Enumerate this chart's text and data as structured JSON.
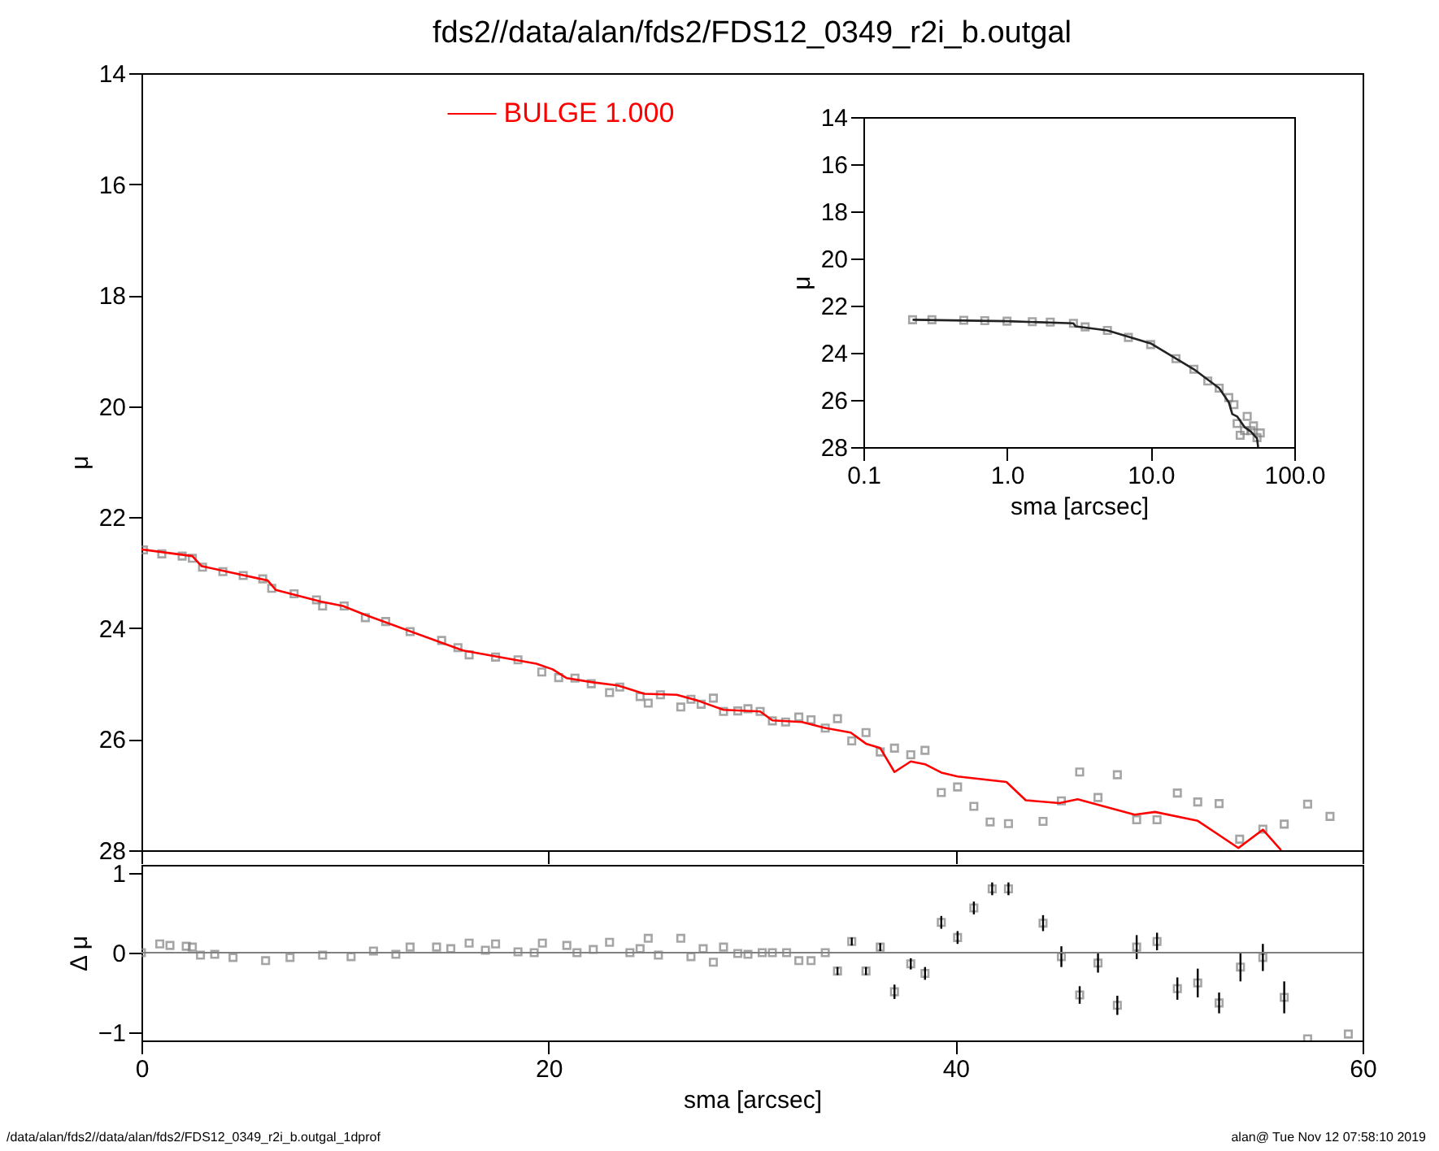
{
  "chart_data": [
    {
      "type": "scatter",
      "title": "fds2//data/alan/fds2/FDS12_0349_r2i_b.outgal",
      "ylabel": "μ",
      "xlim": [
        0,
        60
      ],
      "xticks": [
        0,
        20,
        40,
        60
      ],
      "ylim": [
        28,
        14
      ],
      "yticks": [
        14,
        16,
        18,
        20,
        22,
        24,
        26,
        28
      ],
      "tick_labels": "y",
      "legend": "top",
      "annotations": [
        "/data/alan/fds2//data/alan/fds2/FDS12_0349_r2i_b.outgal_1dprof",
        "alan@  Tue Nov 12 07:58:10 2019"
      ],
      "series": [
        {
          "marker": "square",
          "color": "#808080",
          "x": [
            0.1,
            1.0,
            2.0,
            2.5,
            3.0,
            4.0,
            5.0,
            5.96,
            6.4,
            7.5,
            8.6,
            8.9,
            9.96,
            11.0,
            12.0,
            13.2,
            14.75,
            15.55,
            16.1,
            17.4,
            18.5,
            19.67,
            20.5,
            21.3,
            22.1,
            23.0,
            23.5,
            24.5,
            24.9,
            25.5,
            26.5,
            27.0,
            27.5,
            28.1,
            28.6,
            29.3,
            29.8,
            30.4,
            31.0,
            31.65,
            32.3,
            32.9,
            33.6,
            34.2,
            34.9,
            35.6,
            36.3,
            37.0,
            37.8,
            38.5,
            39.3,
            40.1,
            40.9,
            41.7,
            42.6,
            44.3,
            45.2,
            46.1,
            47.0,
            47.95,
            48.9,
            49.9,
            50.9,
            51.9,
            52.95,
            53.96,
            55.1,
            56.15,
            57.3,
            58.4
          ],
          "values": [
            22.59,
            22.66,
            22.7,
            22.74,
            22.9,
            22.98,
            23.05,
            23.11,
            23.28,
            23.38,
            23.49,
            23.6,
            23.6,
            23.81,
            23.88,
            24.06,
            24.22,
            24.35,
            24.48,
            24.52,
            24.57,
            24.79,
            24.89,
            24.9,
            25.0,
            25.16,
            25.06,
            25.23,
            25.35,
            25.2,
            25.42,
            25.28,
            25.37,
            25.26,
            25.5,
            25.49,
            25.45,
            25.5,
            25.67,
            25.69,
            25.6,
            25.65,
            25.8,
            25.63,
            26.03,
            25.88,
            26.23,
            26.16,
            26.28,
            26.2,
            26.96,
            26.86,
            27.21,
            27.49,
            27.52,
            27.48,
            27.11,
            26.59,
            27.05,
            26.64,
            27.45,
            27.45,
            26.97,
            27.13,
            27.16,
            27.8,
            27.62,
            27.53,
            27.17,
            27.39
          ]
        },
        {
          "type": "line",
          "name": "BULGE  1.000",
          "color": "#ff0000",
          "x": [
            0,
            2.5,
            2.95,
            6.2,
            6.6,
            8.8,
            9.9,
            11,
            15.8,
            19.4,
            20.2,
            20.9,
            22.1,
            23.4,
            24.7,
            26.3,
            27.3,
            28.6,
            30.4,
            31.0,
            32.45,
            33.5,
            34.85,
            35.6,
            36.3,
            37.0,
            37.8,
            38.5,
            39.3,
            40.1,
            42.5,
            43.45,
            45.1,
            46.0,
            48.8,
            49.8,
            51.9,
            53.9,
            55.1,
            56.0
          ],
          "values": [
            22.58,
            22.7,
            22.88,
            23.14,
            23.31,
            23.52,
            23.6,
            23.76,
            24.4,
            24.64,
            24.74,
            24.9,
            24.97,
            25.03,
            25.18,
            25.2,
            25.3,
            25.47,
            25.5,
            25.66,
            25.69,
            25.79,
            25.88,
            26.08,
            26.16,
            26.59,
            26.4,
            26.45,
            26.6,
            26.67,
            26.77,
            27.1,
            27.15,
            27.08,
            27.36,
            27.31,
            27.47,
            27.96,
            27.63,
            28.0
          ]
        }
      ]
    },
    {
      "type": "scatter",
      "xlabel": "sma [arcsec]",
      "ylabel": "μ",
      "log": "x",
      "xlim": [
        0.1,
        100
      ],
      "xticks": [
        {
          "value": 0.1,
          "label": "0.1"
        },
        {
          "value": 1,
          "label": "1.0"
        },
        {
          "value": 10,
          "label": "10.0"
        },
        {
          "value": 100,
          "label": "100.0"
        }
      ],
      "ylim": [
        28,
        14
      ],
      "yticks": [
        14,
        16,
        18,
        20,
        22,
        24,
        26,
        28
      ],
      "series": [
        {
          "marker": "square",
          "color": "#808080",
          "x": [
            0.22,
            0.3,
            0.5,
            0.7,
            1,
            1.5,
            2,
            2.9,
            3.5,
            5,
            7,
            10,
            15,
            20,
            25,
            30,
            35,
            38,
            40,
            42,
            45,
            47,
            50,
            52,
            55,
            58
          ],
          "values": [
            22.6,
            22.6,
            22.62,
            22.64,
            22.66,
            22.68,
            22.7,
            22.75,
            22.9,
            23.05,
            23.35,
            23.65,
            24.25,
            24.7,
            25.2,
            25.5,
            25.9,
            26.2,
            27.0,
            27.5,
            27.3,
            26.7,
            27.3,
            27.1,
            27.6,
            27.4
          ]
        },
        {
          "type": "line",
          "color": "#222222",
          "x": [
            0.22,
            1,
            2.9,
            3,
            5,
            10,
            20,
            30,
            35,
            37,
            40,
            45,
            50,
            55,
            56
          ],
          "values": [
            22.6,
            22.66,
            22.75,
            22.88,
            23.05,
            23.6,
            24.7,
            25.5,
            26.1,
            26.6,
            26.7,
            27.15,
            27.35,
            27.63,
            28
          ]
        }
      ]
    },
    {
      "type": "scatter",
      "xlabel": "sma [arcsec]",
      "ylabel": "Δ μ",
      "xlim": [
        0,
        60
      ],
      "xticks": [
        0,
        20,
        40,
        60
      ],
      "ylim": [
        -1.1,
        1.1
      ],
      "yticks": [
        -1,
        0,
        1
      ],
      "marker": "square",
      "color": "#808080",
      "ref_lines": [
        {
          "axis": "y",
          "value": 0,
          "color": "#808080"
        }
      ],
      "x": [
        0.0,
        0.9,
        1.4,
        2.2,
        2.5,
        2.9,
        3.6,
        4.5,
        6.1,
        7.3,
        8.9,
        10.3,
        11.4,
        12.5,
        13.2,
        14.5,
        15.2,
        16.1,
        16.9,
        17.4,
        18.5,
        19.3,
        19.7,
        20.9,
        21.4,
        22.2,
        23.0,
        24.0,
        24.5,
        24.9,
        25.4,
        26.5,
        27.0,
        27.6,
        28.1,
        28.6,
        29.3,
        29.8,
        30.5,
        31.0,
        31.7,
        32.3,
        32.9,
        33.6,
        34.2,
        34.9,
        35.6,
        36.3,
        37.0,
        37.8,
        38.5,
        39.3,
        40.1,
        40.9,
        41.8,
        42.6,
        44.3,
        45.2,
        46.1,
        47.0,
        47.95,
        48.9,
        49.9,
        50.9,
        51.9,
        52.95,
        54.0,
        55.1,
        56.15,
        57.3,
        59.3
      ],
      "values": [
        0,
        0.11,
        0.09,
        0.08,
        0.07,
        -0.03,
        -0.02,
        -0.06,
        -0.1,
        -0.06,
        -0.03,
        -0.05,
        0.02,
        -0.02,
        0.07,
        0.07,
        0.05,
        0.12,
        0.03,
        0.11,
        0.01,
        0,
        0.12,
        0.09,
        0,
        0.04,
        0.13,
        0,
        0.05,
        0.18,
        -0.03,
        0.18,
        -0.05,
        0.05,
        -0.12,
        0.07,
        -0.01,
        -0.02,
        0,
        0,
        0,
        -0.1,
        -0.1,
        0,
        -0.23,
        0.14,
        -0.23,
        0.07,
        -0.49,
        -0.14,
        -0.26,
        0.38,
        0.19,
        0.56,
        0.8,
        0.8,
        0.37,
        -0.05,
        -0.53,
        -0.13,
        -0.66,
        0.07,
        0.14,
        -0.45,
        -0.38,
        -0.63,
        -0.18,
        -0.06,
        -0.56,
        -1.08,
        -1.02
      ],
      "errors": [
        null,
        null,
        null,
        null,
        null,
        null,
        null,
        null,
        null,
        null,
        null,
        null,
        null,
        null,
        null,
        null,
        null,
        null,
        null,
        null,
        null,
        null,
        null,
        null,
        null,
        null,
        null,
        null,
        null,
        null,
        null,
        null,
        null,
        null,
        null,
        null,
        null,
        null,
        null,
        null,
        null,
        null,
        null,
        null,
        0.05,
        0.05,
        0.05,
        0.05,
        0.09,
        0.07,
        0.08,
        0.08,
        0.08,
        0.08,
        0.08,
        0.08,
        0.1,
        0.13,
        0.11,
        0.12,
        0.12,
        0.15,
        0.11,
        0.14,
        0.18,
        0.13,
        0.18,
        0.17,
        0.2,
        null,
        null
      ]
    }
  ]
}
